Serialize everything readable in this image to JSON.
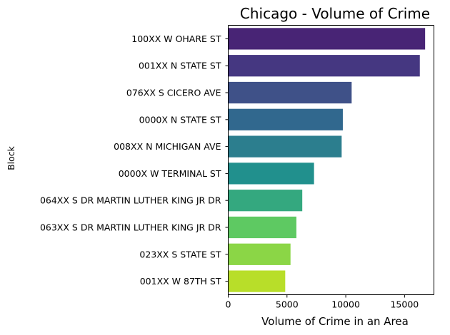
{
  "chart_data": {
    "type": "bar",
    "orientation": "horizontal",
    "title": "Chicago - Volume of Crime",
    "xlabel": "Volume of Crime in an Area",
    "ylabel": "Block",
    "xlim": [
      0,
      17500
    ],
    "xticks": [
      0,
      5000,
      10000,
      15000
    ],
    "xtick_labels": [
      "0",
      "5000",
      "10000",
      "15000"
    ],
    "categories": [
      "100XX W OHARE ST",
      "001XX N STATE ST",
      "076XX S CICERO AVE",
      "0000X N STATE ST",
      "008XX N MICHIGAN AVE",
      "0000X W TERMINAL ST",
      "064XX S DR MARTIN LUTHER KING JR DR",
      "063XX S DR MARTIN LUTHER KING JR DR",
      "023XX S STATE ST",
      "001XX W 87TH ST"
    ],
    "values": [
      16750,
      16300,
      10500,
      9750,
      9650,
      7300,
      6300,
      5800,
      5300,
      4850
    ],
    "colors": [
      "#482475",
      "#453781",
      "#3f5188",
      "#31688e",
      "#2c7e8e",
      "#21908d",
      "#34a87f",
      "#5ec962",
      "#8bd646",
      "#b8de29"
    ],
    "grid": false,
    "legend": "none"
  }
}
